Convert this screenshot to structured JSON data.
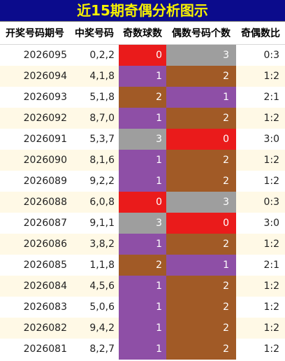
{
  "title": "近15期奇偶分析图示",
  "headers": [
    "开奖号码期号",
    "中奖号码",
    "奇数球数",
    "偶数号码个数",
    "奇偶数比"
  ],
  "rows": [
    {
      "issue": "2026095",
      "numbers": "0,2,2",
      "odd": "0",
      "even": "3",
      "ratio": "0:3",
      "odd_color": "#ea1b1b",
      "even_color": "#9e9e9e"
    },
    {
      "issue": "2026094",
      "numbers": "4,1,8",
      "odd": "1",
      "even": "2",
      "ratio": "1:2",
      "odd_color": "#8e4fa6",
      "even_color": "#a15a26"
    },
    {
      "issue": "2026093",
      "numbers": "5,1,8",
      "odd": "2",
      "even": "1",
      "ratio": "2:1",
      "odd_color": "#a15a26",
      "even_color": "#8e4fa6"
    },
    {
      "issue": "2026092",
      "numbers": "8,7,0",
      "odd": "1",
      "even": "2",
      "ratio": "1:2",
      "odd_color": "#8e4fa6",
      "even_color": "#a15a26"
    },
    {
      "issue": "2026091",
      "numbers": "5,3,7",
      "odd": "3",
      "even": "0",
      "ratio": "3:0",
      "odd_color": "#9e9e9e",
      "even_color": "#ea1b1b"
    },
    {
      "issue": "2026090",
      "numbers": "8,1,6",
      "odd": "1",
      "even": "2",
      "ratio": "1:2",
      "odd_color": "#8e4fa6",
      "even_color": "#a15a26"
    },
    {
      "issue": "2026089",
      "numbers": "9,2,2",
      "odd": "1",
      "even": "2",
      "ratio": "1:2",
      "odd_color": "#8e4fa6",
      "even_color": "#a15a26"
    },
    {
      "issue": "2026088",
      "numbers": "6,0,8",
      "odd": "0",
      "even": "3",
      "ratio": "0:3",
      "odd_color": "#ea1b1b",
      "even_color": "#9e9e9e"
    },
    {
      "issue": "2026087",
      "numbers": "9,1,1",
      "odd": "3",
      "even": "0",
      "ratio": "3:0",
      "odd_color": "#9e9e9e",
      "even_color": "#ea1b1b"
    },
    {
      "issue": "2026086",
      "numbers": "3,8,2",
      "odd": "1",
      "even": "2",
      "ratio": "1:2",
      "odd_color": "#8e4fa6",
      "even_color": "#a15a26"
    },
    {
      "issue": "2026085",
      "numbers": "1,1,8",
      "odd": "2",
      "even": "1",
      "ratio": "2:1",
      "odd_color": "#a15a26",
      "even_color": "#8e4fa6"
    },
    {
      "issue": "2026084",
      "numbers": "4,5,6",
      "odd": "1",
      "even": "2",
      "ratio": "1:2",
      "odd_color": "#8e4fa6",
      "even_color": "#a15a26"
    },
    {
      "issue": "2026083",
      "numbers": "5,0,6",
      "odd": "1",
      "even": "2",
      "ratio": "1:2",
      "odd_color": "#8e4fa6",
      "even_color": "#a15a26"
    },
    {
      "issue": "2026082",
      "numbers": "9,4,2",
      "odd": "1",
      "even": "2",
      "ratio": "1:2",
      "odd_color": "#8e4fa6",
      "even_color": "#a15a26"
    },
    {
      "issue": "2026081",
      "numbers": "8,2,7",
      "odd": "1",
      "even": "2",
      "ratio": "1:2",
      "odd_color": "#8e4fa6",
      "even_color": "#a15a26"
    }
  ]
}
